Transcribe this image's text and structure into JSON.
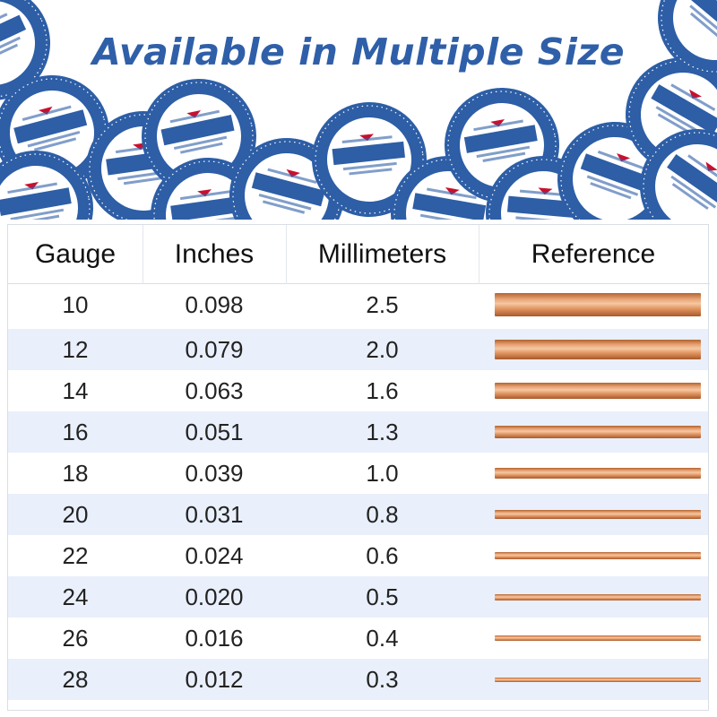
{
  "banner": {
    "headline": "Available in Multiple Size",
    "spool_label": {
      "arc_text": "SOFT ROUND COPPER WIRE",
      "brand": "MATSALL",
      "gauge": "10 Gauge 2.5mm",
      "purity": "99.96% PURE",
      "weight": "Net Weight: 1.2 LB",
      "length": "Length: 151 Feet",
      "footer": "JEWELRY · ELECTROCULTURE · CRAFT DIY"
    },
    "colors": {
      "headline": "#2f5fa8",
      "spool_ring": "#2d5ea6"
    }
  },
  "table": {
    "headers": [
      "Gauge",
      "Inches",
      "Millimeters",
      "Reference"
    ],
    "rows": [
      {
        "gauge": "10",
        "inches": "0.098",
        "mm": "2.5"
      },
      {
        "gauge": "12",
        "inches": "0.079",
        "mm": "2.0"
      },
      {
        "gauge": "14",
        "inches": "0.063",
        "mm": "1.6"
      },
      {
        "gauge": "16",
        "inches": "0.051",
        "mm": "1.3"
      },
      {
        "gauge": "18",
        "inches": "0.039",
        "mm": "1.0"
      },
      {
        "gauge": "20",
        "inches": "0.031",
        "mm": "0.8"
      },
      {
        "gauge": "22",
        "inches": "0.024",
        "mm": "0.6"
      },
      {
        "gauge": "24",
        "inches": "0.020",
        "mm": "0.5"
      },
      {
        "gauge": "26",
        "inches": "0.016",
        "mm": "0.4"
      },
      {
        "gauge": "28",
        "inches": "0.012",
        "mm": "0.3"
      }
    ],
    "colors": {
      "alt_row": "#e9f0fb",
      "wire": "#e49a66"
    }
  }
}
